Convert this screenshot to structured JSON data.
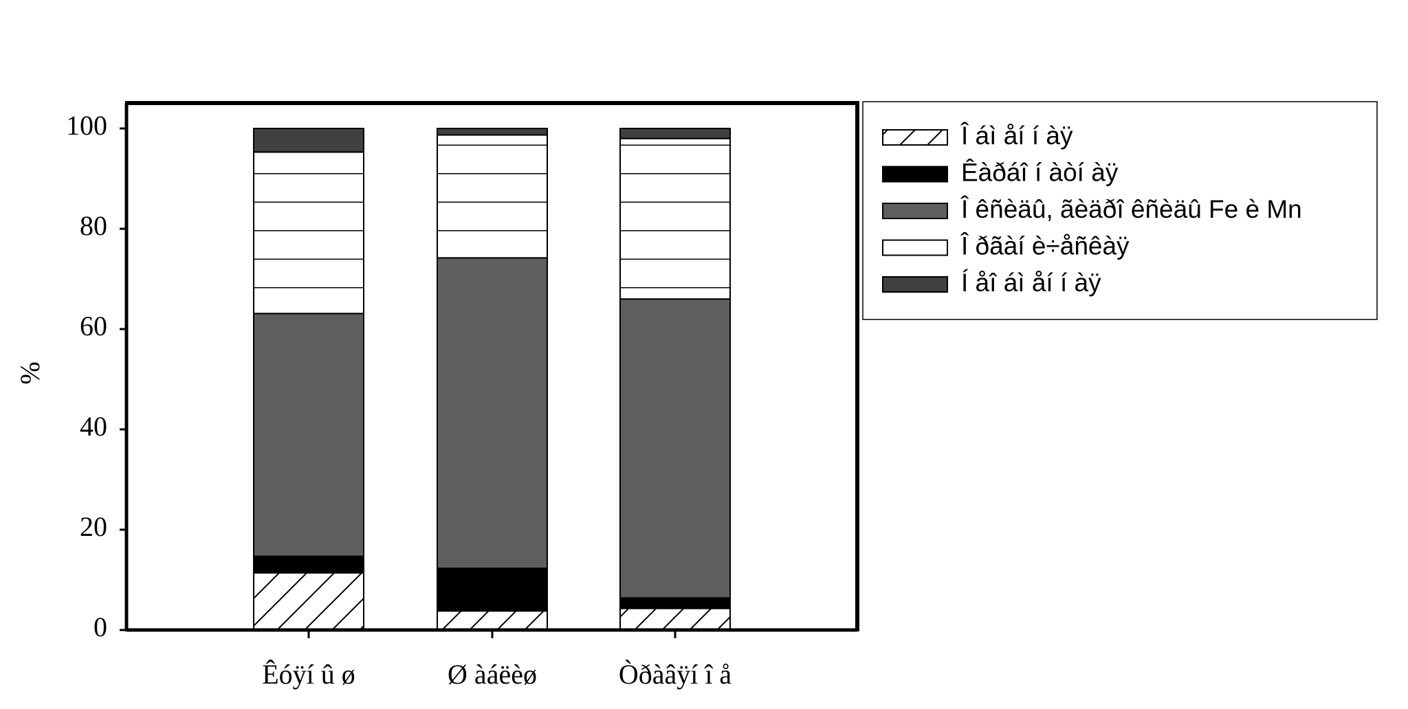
{
  "chart_data": {
    "type": "stacked-bar",
    "y_label": "%",
    "categories": [
      "Êóÿí û ø",
      "Ø àáëèø",
      "Òðàâÿí î å"
    ],
    "ylim": [
      0,
      100
    ],
    "yticks": [
      0,
      20,
      40,
      60,
      80,
      100
    ],
    "series": [
      {
        "name": "Î áì åí í àÿ",
        "color": "#ffffff",
        "pattern": "diagonal",
        "values": [
          11.4,
          3.8,
          4.3
        ]
      },
      {
        "name": "Êàðáî í àòí àÿ",
        "color": "#000000",
        "values": [
          3.3,
          8.5,
          2.1
        ]
      },
      {
        "name": "Î êñèäû, ãèäðî êñèäû Fe è Mn",
        "color": "#5f5f5f",
        "values": [
          48.4,
          61.9,
          59.6
        ]
      },
      {
        "name": "Î ðãàí è÷åñêàÿ",
        "color": "#ffffff",
        "pattern": "horizontal",
        "values": [
          32.2,
          24.5,
          32.0
        ]
      },
      {
        "name": "Í åî áì åí í àÿ",
        "color": "#404040",
        "values": [
          4.7,
          1.3,
          2.0
        ]
      }
    ]
  }
}
